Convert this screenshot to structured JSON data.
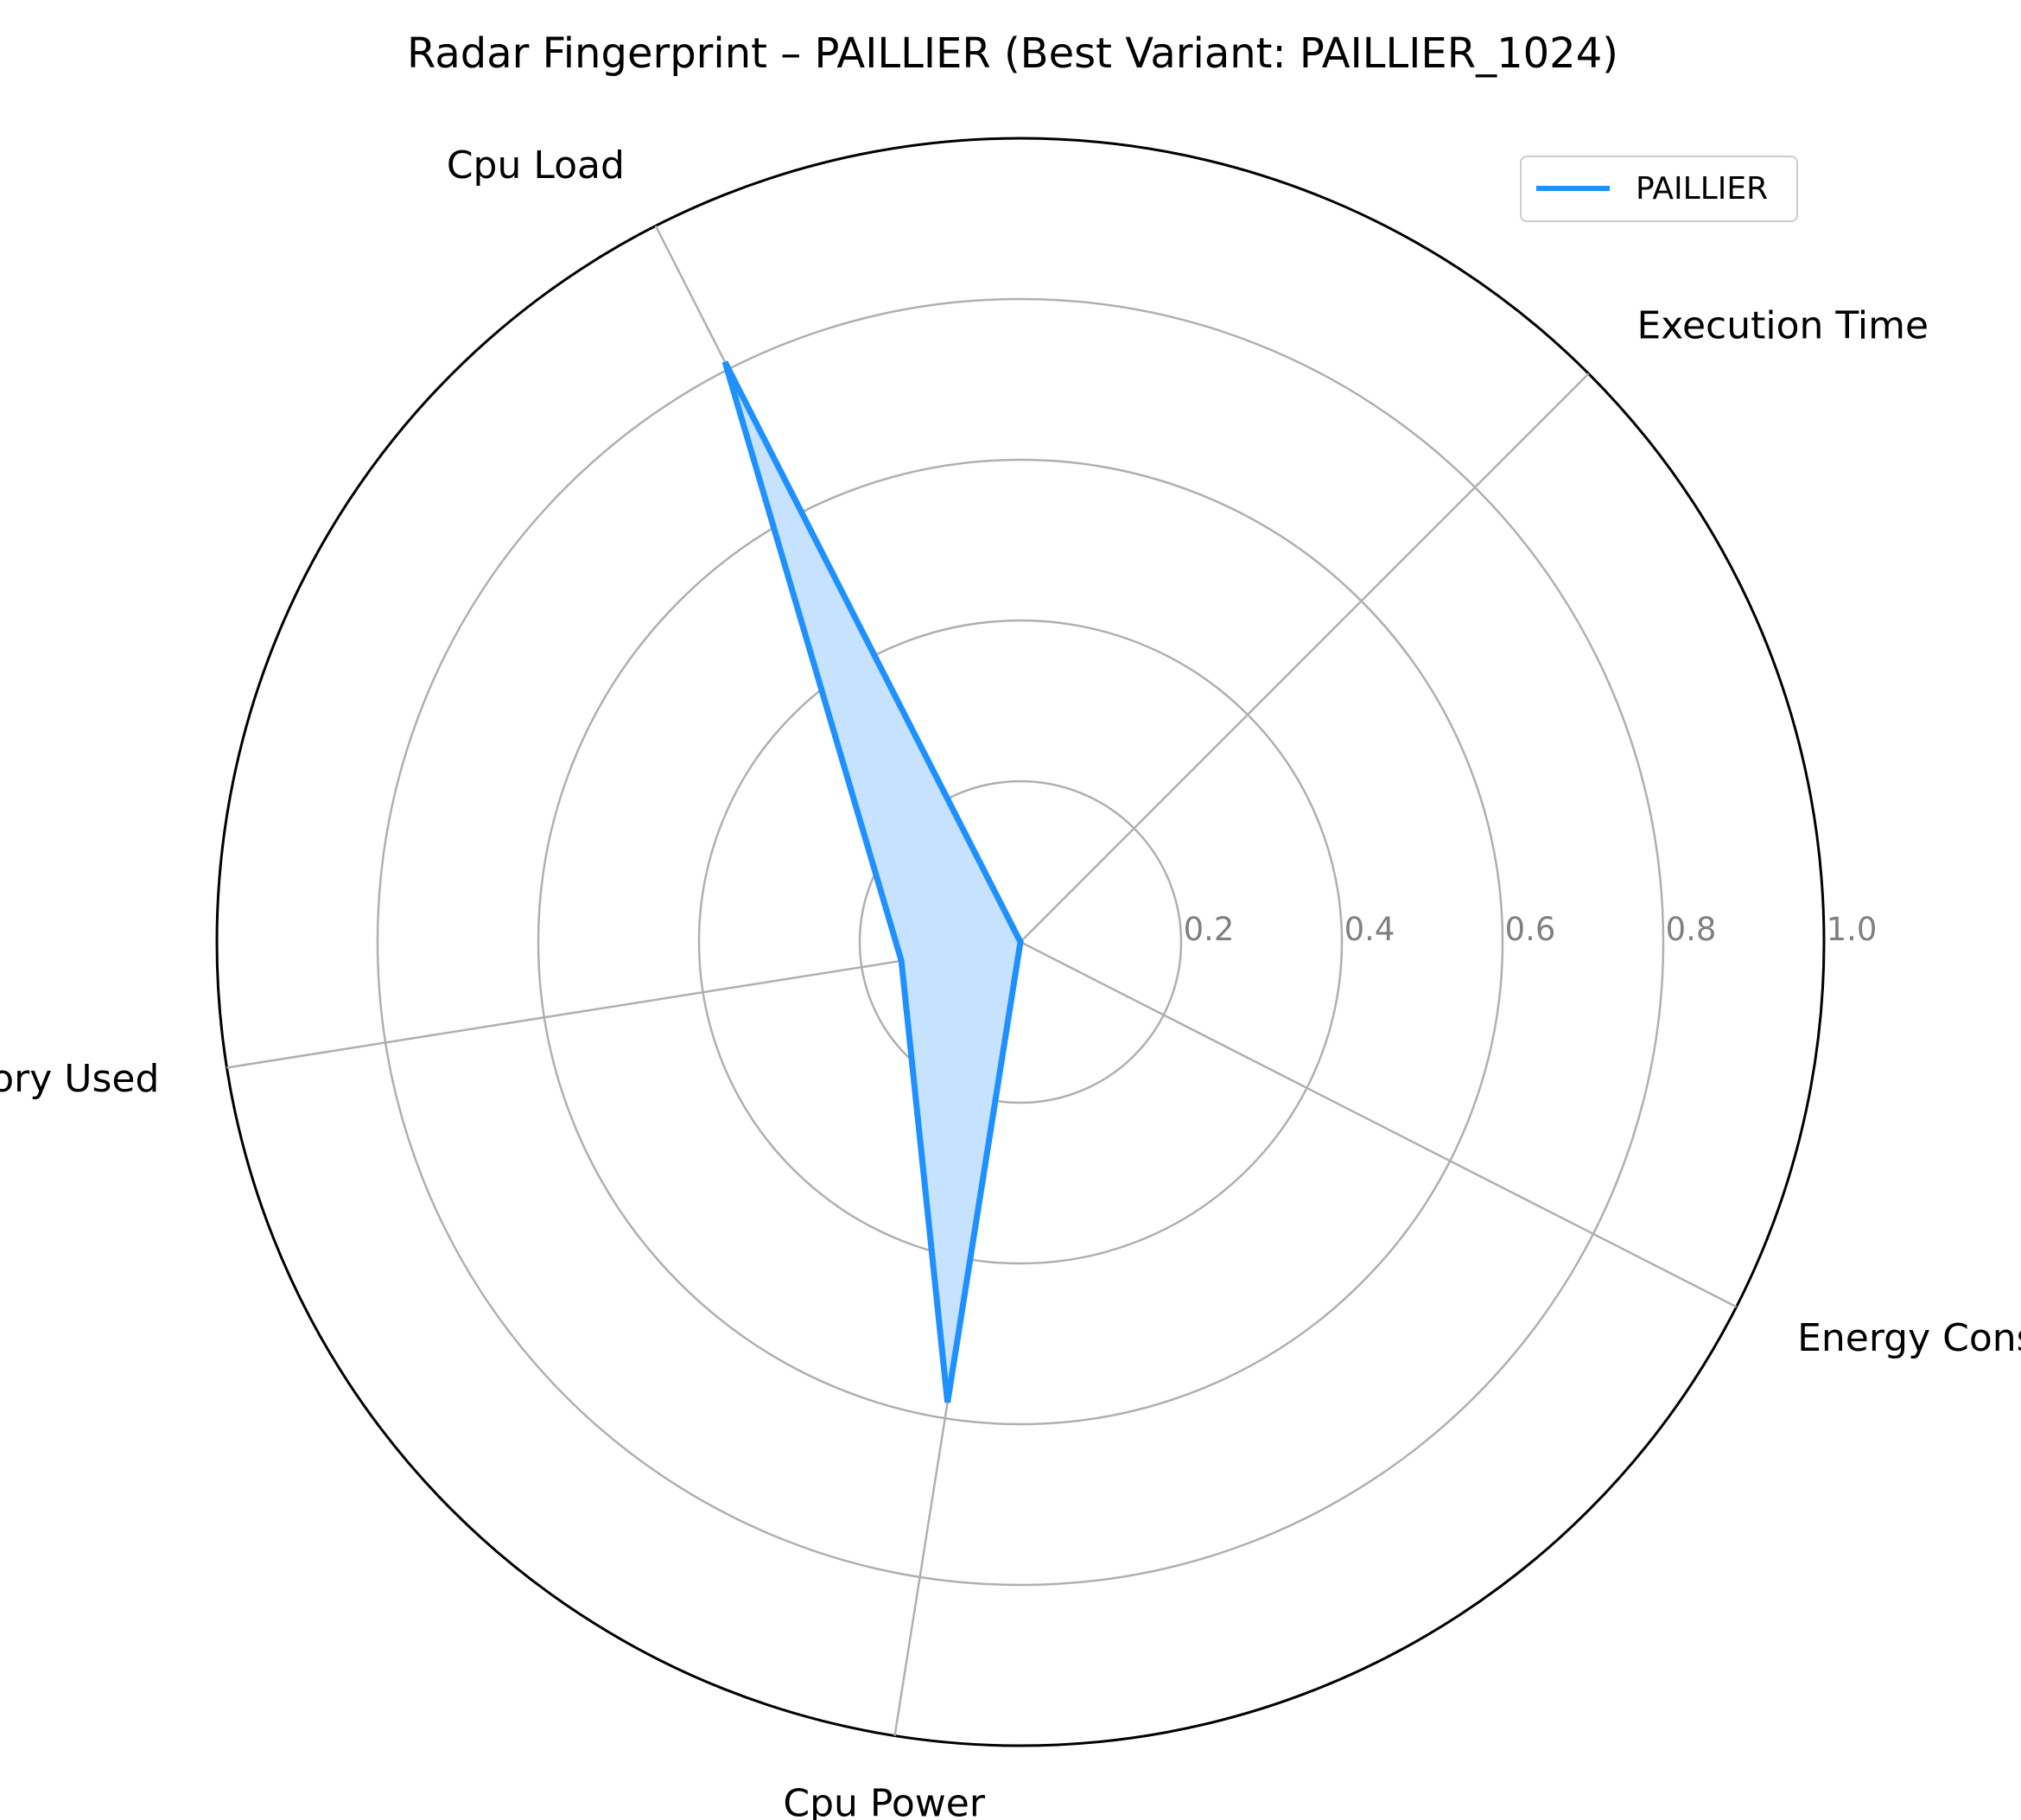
{
  "chart_data": {
    "type": "radar",
    "title": "Radar Fingerprint – PAILLIER (Best Variant: PAILLIER_1024)",
    "axes": [
      "Execution Time",
      "Cpu Load",
      "Memory Used",
      "Cpu Power",
      "Energy Consumption"
    ],
    "rlim": [
      0,
      1.0
    ],
    "rticks": [
      0.2,
      0.4,
      0.6,
      0.8,
      1.0
    ],
    "rtick_labels": [
      "0.2",
      "0.4",
      "0.6",
      "0.8",
      "1.0"
    ],
    "grid": true,
    "legend_position": "top-right",
    "series": [
      {
        "name": "PAILLIER",
        "values": [
          0.0,
          0.81,
          0.15,
          0.58,
          0.0
        ],
        "color": "#1e90ff",
        "fill_color": "#c6e2ff"
      }
    ]
  }
}
